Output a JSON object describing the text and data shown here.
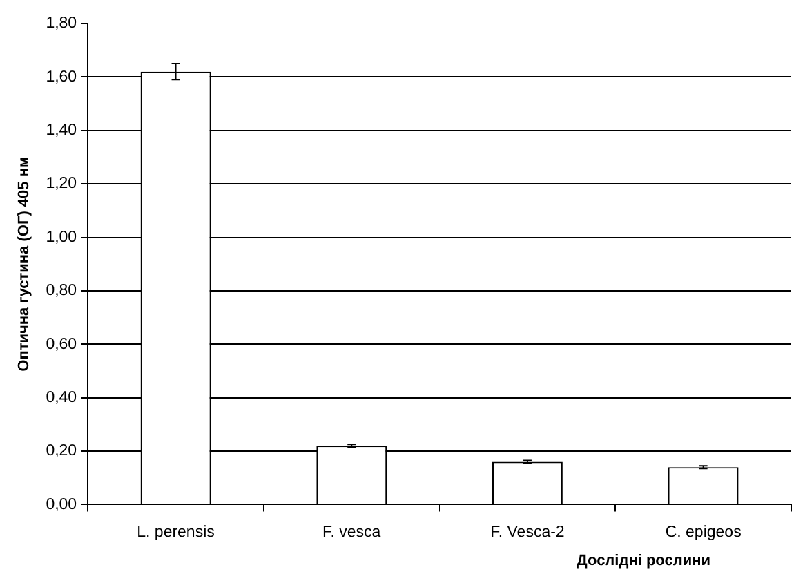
{
  "chart_data": {
    "type": "bar",
    "xlabel": "Дослідні рослини",
    "ylabel": "Оптична густина (ОГ) 405 нм",
    "categories": [
      "L. perensis",
      "F. vesca",
      "F. Vesca-2",
      "C. epigeos"
    ],
    "values": [
      1.62,
      0.22,
      0.16,
      0.14
    ],
    "errors": [
      0.03,
      0.005,
      0.005,
      0.005
    ],
    "color": "#ffffff",
    "ylim": [
      0,
      1.8
    ],
    "yticks": [
      {
        "value": 0,
        "label": "0,00"
      },
      {
        "value": 0.2,
        "label": "0,20"
      },
      {
        "value": 0.4,
        "label": "0,40"
      },
      {
        "value": 0.6,
        "label": "0,60"
      },
      {
        "value": 0.8,
        "label": "0,80"
      },
      {
        "value": 1.0,
        "label": "1,00"
      },
      {
        "value": 1.2,
        "label": "1,20"
      },
      {
        "value": 1.4,
        "label": "1,40"
      },
      {
        "value": 1.6,
        "label": "1,60"
      },
      {
        "value": 1.8,
        "label": "1,80"
      }
    ],
    "grid": "y",
    "legend": false
  }
}
